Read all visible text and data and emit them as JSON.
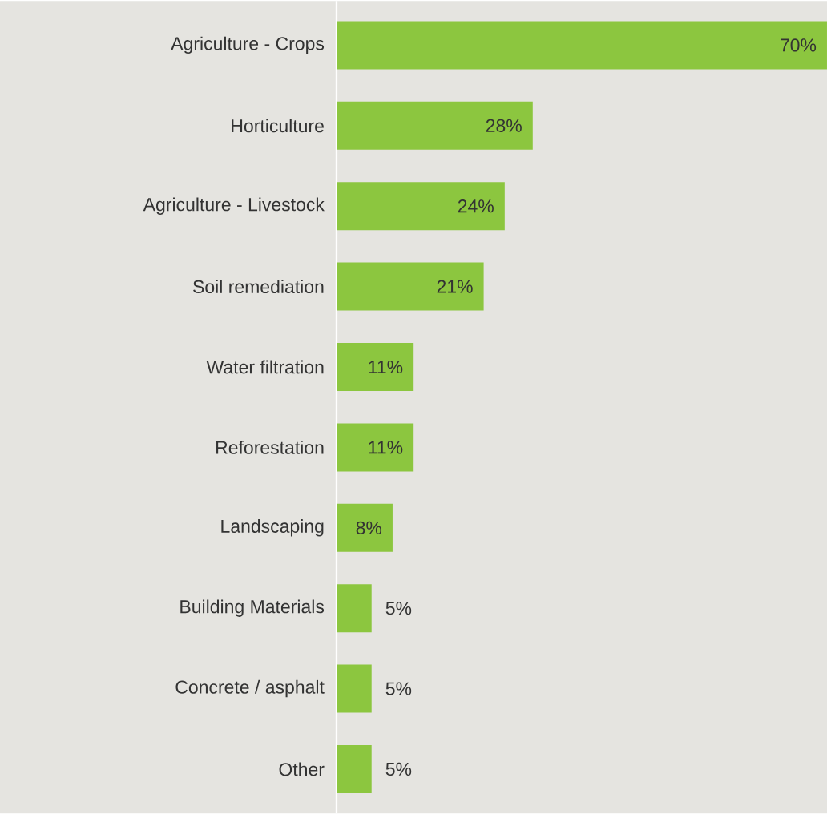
{
  "chart_data": {
    "type": "bar",
    "orientation": "horizontal",
    "data_labels": true,
    "color": "#8cc63f",
    "categories": [
      "Agriculture - Crops",
      "Horticulture",
      "Agriculture - Livestock",
      "Soil remediation",
      "Water filtration",
      "Reforestation",
      "Landscaping",
      "Building Materials",
      "Concrete / asphalt",
      "Other"
    ],
    "values": [
      70,
      28,
      24,
      21,
      11,
      11,
      8,
      5,
      5,
      5
    ],
    "value_labels": [
      "70%",
      "28%",
      "24%",
      "21%",
      "11%",
      "11%",
      "8%",
      "5%",
      "5%",
      "5%"
    ],
    "xlim": [
      0,
      70
    ]
  }
}
